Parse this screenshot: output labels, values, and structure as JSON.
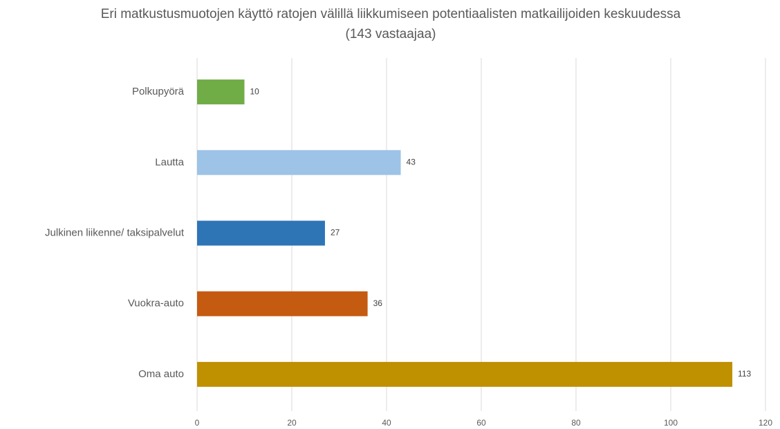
{
  "chart_data": {
    "type": "bar",
    "orientation": "horizontal",
    "title": "Eri matkustusmuotojen käyttö ratojen välillä liikkumiseen potentiaalisten matkailijoiden keskuudessa (143 vastaajaa)",
    "categories": [
      "Polkupyörä",
      "Lautta",
      "Julkinen liikenne/ taksipalvelut",
      "Vuokra-auto",
      "Oma auto"
    ],
    "values": [
      10,
      43,
      27,
      36,
      113
    ],
    "colors": [
      "#70ad47",
      "#9dc3e6",
      "#2e75b6",
      "#c55a11",
      "#bf9000"
    ],
    "xlim": [
      0,
      120
    ],
    "xticks": [
      0,
      20,
      40,
      60,
      80,
      100,
      120
    ],
    "grid": true
  }
}
